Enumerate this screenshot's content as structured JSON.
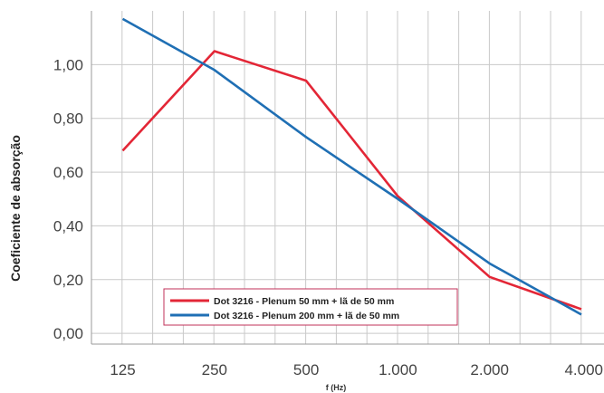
{
  "chart_data": {
    "type": "line",
    "x": [
      "125",
      "250",
      "500",
      "1.000",
      "2.000",
      "4.000"
    ],
    "series": [
      {
        "name": "Dot 3216 - Plenum 50 mm + lã de 50 mm",
        "color": "#e32636",
        "values": [
          0.68,
          1.05,
          0.94,
          0.51,
          0.21,
          0.09
        ]
      },
      {
        "name": "Dot 3216 - Plenum 200 mm + lã de 50 mm",
        "color": "#1f6fb4",
        "values": [
          1.17,
          0.98,
          0.73,
          0.5,
          0.26,
          0.07
        ]
      }
    ],
    "yticks": [
      "0,00",
      "0,20",
      "0,40",
      "0,60",
      "0,80",
      "1,00"
    ],
    "ytick_values": [
      0,
      0.2,
      0.4,
      0.6,
      0.8,
      1.0
    ],
    "ylim": [
      -0.04,
      1.2
    ],
    "xlabel": "f (Hz)",
    "ylabel": "Coeficiente de absorção",
    "grid": true,
    "legend_position": "bottom-center"
  }
}
